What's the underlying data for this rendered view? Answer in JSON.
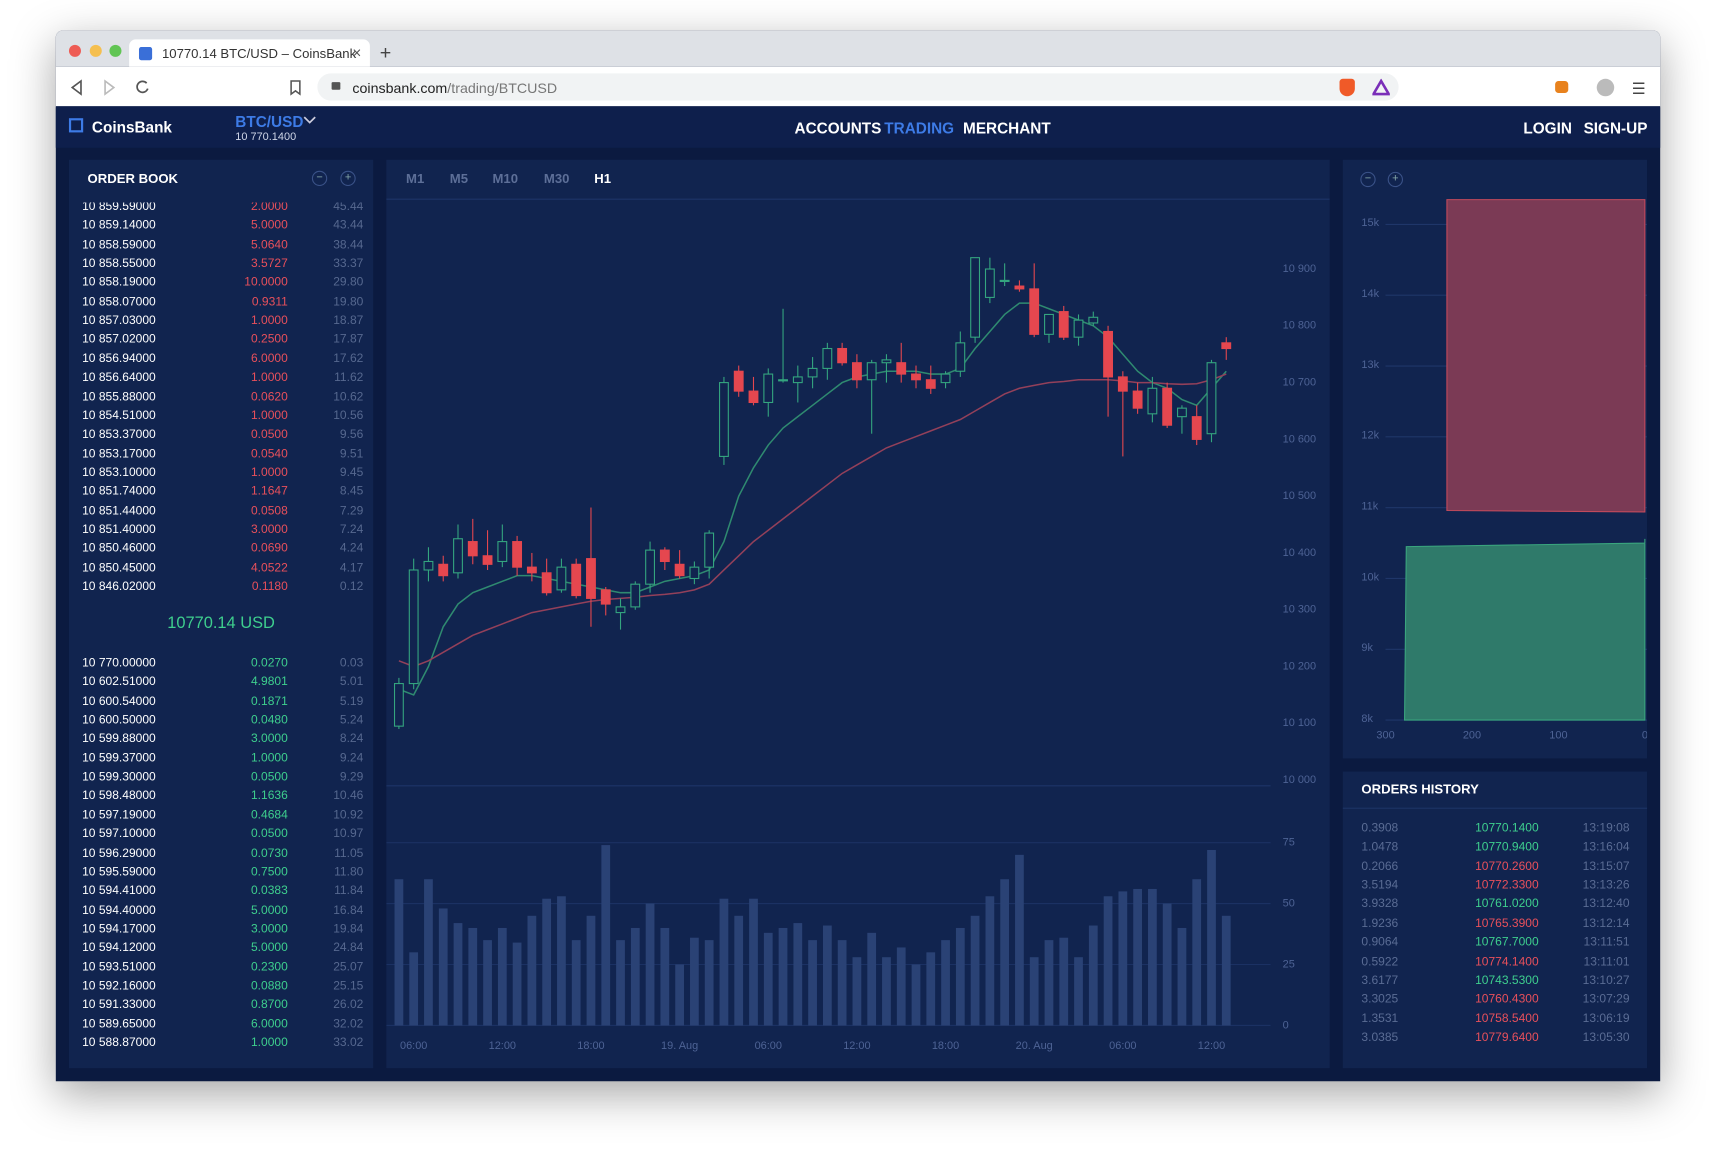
{
  "browser": {
    "tab_title": "10770.14 BTC/USD – CoinsBank",
    "url_host": "coinsbank.com",
    "url_path": "/trading/BTCUSD"
  },
  "header": {
    "logo": "CoinsBank",
    "pair": "BTC/USD",
    "pair_price": "10 770.1400",
    "nav": [
      "ACCOUNTS",
      "TRADING",
      "MERCHANT"
    ],
    "nav_active_index": 1,
    "auth": [
      "LOGIN",
      "SIGN-UP"
    ]
  },
  "order_book": {
    "title": "ORDER BOOK",
    "mid": "10770.14 USD",
    "asks": [
      [
        "10 859.59000",
        "2.0000",
        "45.44"
      ],
      [
        "10 859.14000",
        "5.0000",
        "43.44"
      ],
      [
        "10 858.59000",
        "5.0640",
        "38.44"
      ],
      [
        "10 858.55000",
        "3.5727",
        "33.37"
      ],
      [
        "10 858.19000",
        "10.0000",
        "29.80"
      ],
      [
        "10 858.07000",
        "0.9311",
        "19.80"
      ],
      [
        "10 857.03000",
        "1.0000",
        "18.87"
      ],
      [
        "10 857.02000",
        "0.2500",
        "17.87"
      ],
      [
        "10 856.94000",
        "6.0000",
        "17.62"
      ],
      [
        "10 856.64000",
        "1.0000",
        "11.62"
      ],
      [
        "10 855.88000",
        "0.0620",
        "10.62"
      ],
      [
        "10 854.51000",
        "1.0000",
        "10.56"
      ],
      [
        "10 853.37000",
        "0.0500",
        "9.56"
      ],
      [
        "10 853.17000",
        "0.0540",
        "9.51"
      ],
      [
        "10 853.10000",
        "1.0000",
        "9.45"
      ],
      [
        "10 851.74000",
        "1.1647",
        "8.45"
      ],
      [
        "10 851.44000",
        "0.0508",
        "7.29"
      ],
      [
        "10 851.40000",
        "3.0000",
        "7.24"
      ],
      [
        "10 850.46000",
        "0.0690",
        "4.24"
      ],
      [
        "10 850.45000",
        "4.0522",
        "4.17"
      ],
      [
        "10 846.02000",
        "0.1180",
        "0.12"
      ]
    ],
    "bids": [
      [
        "10 770.00000",
        "0.0270",
        "0.03"
      ],
      [
        "10 602.51000",
        "4.9801",
        "5.01"
      ],
      [
        "10 600.54000",
        "0.1871",
        "5.19"
      ],
      [
        "10 600.50000",
        "0.0480",
        "5.24"
      ],
      [
        "10 599.88000",
        "3.0000",
        "8.24"
      ],
      [
        "10 599.37000",
        "1.0000",
        "9.24"
      ],
      [
        "10 599.30000",
        "0.0500",
        "9.29"
      ],
      [
        "10 598.48000",
        "1.1636",
        "10.46"
      ],
      [
        "10 597.19000",
        "0.4684",
        "10.92"
      ],
      [
        "10 597.10000",
        "0.0500",
        "10.97"
      ],
      [
        "10 596.29000",
        "0.0730",
        "11.05"
      ],
      [
        "10 595.59000",
        "0.7500",
        "11.80"
      ],
      [
        "10 594.41000",
        "0.0383",
        "11.84"
      ],
      [
        "10 594.40000",
        "5.0000",
        "16.84"
      ],
      [
        "10 594.17000",
        "3.0000",
        "19.84"
      ],
      [
        "10 594.12000",
        "5.0000",
        "24.84"
      ],
      [
        "10 593.51000",
        "0.2300",
        "25.07"
      ],
      [
        "10 592.16000",
        "0.0880",
        "25.15"
      ],
      [
        "10 591.33000",
        "0.8700",
        "26.02"
      ],
      [
        "10 589.65000",
        "6.0000",
        "32.02"
      ],
      [
        "10 588.87000",
        "1.0000",
        "33.02"
      ]
    ]
  },
  "chart_data": [
    {
      "type": "candlestick",
      "timeframes": [
        "M1",
        "M5",
        "M10",
        "M30",
        "H1"
      ],
      "timeframe_active": 4,
      "up_color": "#34a57f",
      "down_color": "#e5474f",
      "volume_color": "#2a4275",
      "categories": [
        null,
        "06:00",
        null,
        null,
        null,
        null,
        null,
        "12:00",
        null,
        null,
        null,
        null,
        null,
        "18:00",
        null,
        null,
        null,
        null,
        null,
        "19. Aug",
        null,
        null,
        null,
        null,
        null,
        "06:00",
        null,
        null,
        null,
        null,
        null,
        "12:00",
        null,
        null,
        null,
        null,
        null,
        "18:00",
        null,
        null,
        null,
        null,
        null,
        "20. Aug",
        null,
        null,
        null,
        null,
        null,
        "06:00",
        null,
        null,
        null,
        null,
        null,
        "12:00",
        null
      ],
      "open": [
        10095,
        10170,
        10370,
        10380,
        10365,
        10420,
        10395,
        10385,
        10420,
        10375,
        10365,
        10335,
        10380,
        10390,
        10335,
        10295,
        10305,
        10345,
        10405,
        10380,
        10355,
        10375,
        10570,
        10720,
        10685,
        10665,
        10705,
        10700,
        10710,
        10725,
        10760,
        10735,
        10705,
        10735,
        10735,
        10715,
        10705,
        10700,
        10720,
        10780,
        10850,
        10880,
        10870,
        10865,
        10785,
        10825,
        10780,
        10805,
        10790,
        10710,
        10685,
        10645,
        10690,
        10640,
        10640,
        10610,
        10770
      ],
      "high": [
        10180,
        10390,
        10410,
        10395,
        10450,
        10460,
        10440,
        10450,
        10430,
        10400,
        10390,
        10390,
        10390,
        10480,
        10340,
        10320,
        10350,
        10420,
        10410,
        10405,
        10385,
        10440,
        10710,
        10730,
        10710,
        10725,
        10830,
        10730,
        10745,
        10770,
        10770,
        10750,
        10740,
        10750,
        10770,
        10730,
        10730,
        10720,
        10790,
        10920,
        10920,
        10910,
        10880,
        10910,
        10820,
        10835,
        10820,
        10825,
        10800,
        10720,
        10700,
        10710,
        10700,
        10660,
        10660,
        10740,
        10780
      ],
      "low": [
        10090,
        10160,
        10350,
        10350,
        10355,
        10380,
        10370,
        10375,
        10360,
        10350,
        10325,
        10330,
        10320,
        10270,
        10290,
        10265,
        10300,
        10330,
        10370,
        10355,
        10345,
        10355,
        10555,
        10675,
        10660,
        10640,
        10700,
        10665,
        10690,
        10705,
        10730,
        10690,
        10610,
        10700,
        10700,
        10690,
        10680,
        10690,
        10710,
        10770,
        10840,
        10870,
        10860,
        10780,
        10770,
        10775,
        10765,
        10800,
        10640,
        10570,
        10645,
        10630,
        10620,
        10610,
        10590,
        10595,
        10740
      ],
      "close": [
        10170,
        10370,
        10385,
        10360,
        10425,
        10395,
        10380,
        10420,
        10375,
        10365,
        10330,
        10375,
        10325,
        10320,
        10310,
        10305,
        10345,
        10405,
        10385,
        10360,
        10375,
        10435,
        10700,
        10685,
        10665,
        10715,
        10705,
        10710,
        10725,
        10760,
        10735,
        10705,
        10735,
        10740,
        10715,
        10705,
        10690,
        10715,
        10770,
        10920,
        10900,
        10880,
        10865,
        10785,
        10820,
        10780,
        10810,
        10815,
        10710,
        10685,
        10655,
        10690,
        10625,
        10655,
        10600,
        10735,
        10760
      ],
      "volume": [
        60,
        30,
        60,
        48,
        42,
        40,
        35,
        40,
        34,
        45,
        52,
        53,
        35,
        45,
        74,
        35,
        40,
        50,
        40,
        25,
        36,
        35,
        52,
        45,
        52,
        38,
        40,
        42,
        35,
        41,
        35,
        28,
        38,
        28,
        32,
        25,
        30,
        35,
        40,
        45,
        53,
        60,
        70,
        28,
        35,
        36,
        28,
        41,
        53,
        55,
        56,
        56,
        50,
        40,
        60,
        72,
        45
      ],
      "ma": [
        {
          "color": "#2f8a70",
          "values": [
            10160,
            10150,
            10200,
            10270,
            10310,
            10330,
            10340,
            10350,
            10360,
            10360,
            10355,
            10350,
            10345,
            10340,
            10335,
            10330,
            10330,
            10340,
            10350,
            10355,
            10360,
            10370,
            10420,
            10500,
            10550,
            10590,
            10620,
            10640,
            10660,
            10680,
            10700,
            10710,
            10715,
            10720,
            10720,
            10720,
            10715,
            10715,
            10725,
            10760,
            10790,
            10820,
            10840,
            10840,
            10830,
            10820,
            10810,
            10800,
            10780,
            10750,
            10720,
            10700,
            10690,
            10670,
            10660,
            10690,
            10720
          ]
        },
        {
          "color": "#93405a",
          "values": [
            10210,
            10200,
            10210,
            10225,
            10240,
            10255,
            10265,
            10275,
            10285,
            10295,
            10300,
            10305,
            10310,
            10315,
            10318,
            10320,
            10322,
            10325,
            10327,
            10330,
            10335,
            10345,
            10370,
            10395,
            10420,
            10440,
            10460,
            10480,
            10500,
            10520,
            10540,
            10555,
            10570,
            10585,
            10595,
            10605,
            10615,
            10625,
            10635,
            10650,
            10665,
            10680,
            10690,
            10695,
            10700,
            10702,
            10705,
            10705,
            10705,
            10703,
            10700,
            10700,
            10698,
            10697,
            10698,
            10705,
            10715
          ]
        }
      ],
      "ylim": [
        9990,
        11023
      ],
      "yticks": [
        {
          "value": 10000,
          "label": "10 000"
        },
        {
          "value": 10100,
          "label": "10 100"
        },
        {
          "value": 10200,
          "label": "10 200"
        },
        {
          "value": 10300,
          "label": "10 300"
        },
        {
          "value": 10400,
          "label": "10 400"
        },
        {
          "value": 10500,
          "label": "10 500"
        },
        {
          "value": 10600,
          "label": "10 600"
        },
        {
          "value": 10700,
          "label": "10 700"
        },
        {
          "value": 10800,
          "label": "10 800"
        },
        {
          "value": 10900,
          "label": "10 900"
        }
      ],
      "volume_ylim": [
        0,
        78
      ],
      "volume_yticks": [
        0,
        25,
        50,
        75
      ]
    },
    {
      "type": "depth",
      "xlim": [
        345,
        0
      ],
      "xticks": [
        300,
        200,
        100,
        0
      ],
      "ylim": [
        8000,
        15350
      ],
      "yticks": [
        {
          "value": 8000,
          "label": "8k"
        },
        {
          "value": 9000,
          "label": "9k"
        },
        {
          "value": 10000,
          "label": "10k"
        },
        {
          "value": 11000,
          "label": "11k"
        },
        {
          "value": 12000,
          "label": "12k"
        },
        {
          "value": 13000,
          "label": "13k"
        },
        {
          "value": 14000,
          "label": "14k"
        },
        {
          "value": 15000,
          "label": "15k"
        }
      ],
      "series": [
        {
          "color": "#c24a5c",
          "fill": "#7b3a55",
          "x": [
            229,
            229,
            0
          ],
          "y": [
            15350,
            10960,
            10940
          ]
        },
        {
          "color": "#3aa57e",
          "fill": "#2f7a6a",
          "x": [
            278,
            276,
            0,
            0
          ],
          "y": [
            8000,
            10450,
            10500,
            10560
          ]
        }
      ]
    }
  ],
  "orders_history": {
    "title": "ORDERS HISTORY",
    "rows": [
      [
        "0.3908",
        "10770.1400",
        "13:19:08"
      ],
      [
        "1.0478",
        "10770.9400",
        "13:16:04"
      ],
      [
        "0.2066",
        "10770.2600",
        "13:15:07"
      ],
      [
        "3.5194",
        "10772.3300",
        "13:13:26"
      ],
      [
        "3.9328",
        "10761.0200",
        "13:12:40"
      ],
      [
        "1.9236",
        "10765.3900",
        "13:12:14"
      ],
      [
        "0.9064",
        "10767.7000",
        "13:11:51"
      ],
      [
        "0.5922",
        "10774.1400",
        "13:11:01"
      ],
      [
        "3.6177",
        "10743.5300",
        "13:10:27"
      ],
      [
        "3.3025",
        "10760.4300",
        "13:07:29"
      ],
      [
        "1.3531",
        "10758.5400",
        "13:06:19"
      ],
      [
        "3.0385",
        "10779.6400",
        "13:05:30"
      ]
    ],
    "colors": [
      "#3ecf8e",
      "#3ecf8e",
      "#e8505b",
      "#e8505b",
      "#3ecf8e",
      "#e8505b",
      "#3ecf8e",
      "#e8505b",
      "#3ecf8e",
      "#e8505b",
      "#e8505b",
      "#e8505b"
    ]
  }
}
